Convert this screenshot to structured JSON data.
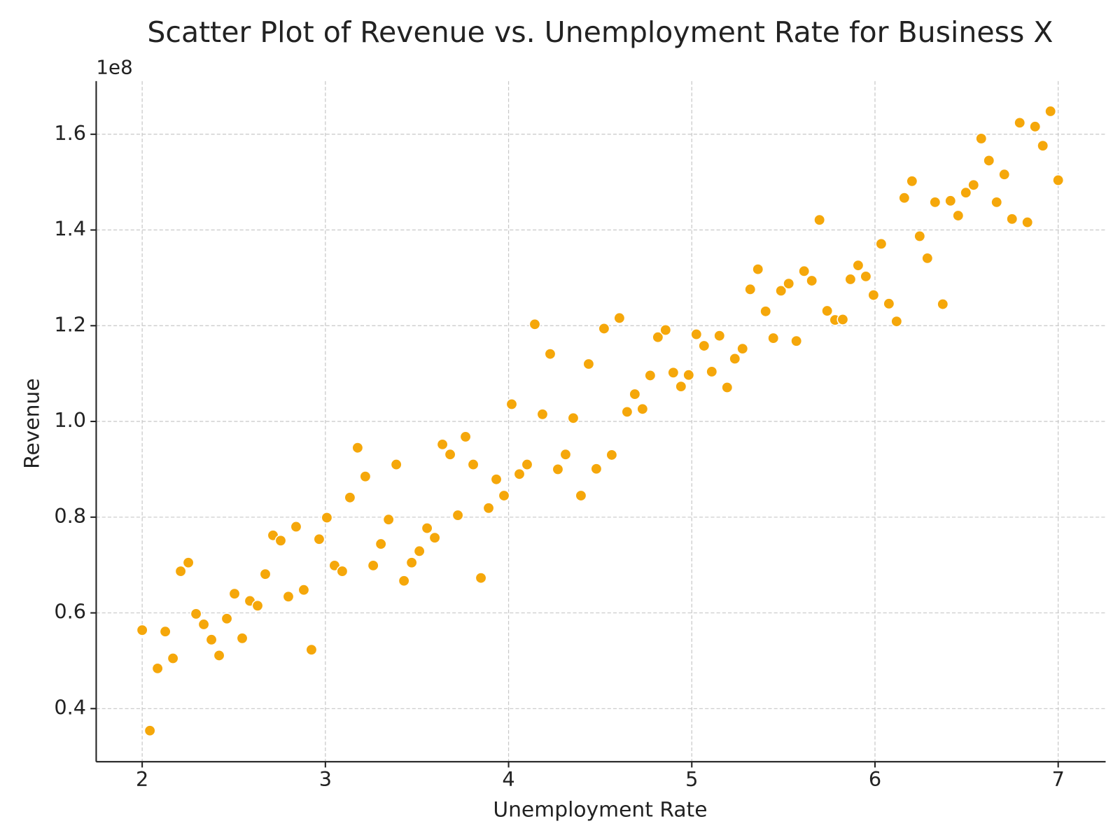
{
  "chart_data": {
    "type": "scatter",
    "title": "Scatter Plot of Revenue vs. Unemployment Rate for Business X",
    "x_label": "Unemployment Rate",
    "y_label": "Revenue",
    "y_offset_label": "1e8",
    "color": "#f5a70a",
    "grid": true,
    "xlim": [
      1.749,
      7.259
    ],
    "ylim": [
      0.289,
      1.711
    ],
    "xticks": [
      2,
      3,
      4,
      5,
      6,
      7
    ],
    "yticks": [
      0.4,
      0.6,
      0.8,
      {
        "value": 1,
        "label": "1.0"
      },
      1.2,
      1.4,
      1.6
    ],
    "x": [
      2.0,
      2.042,
      2.084,
      2.126,
      2.168,
      2.21,
      2.252,
      2.294,
      2.336,
      2.378,
      2.42,
      2.462,
      2.504,
      2.546,
      2.588,
      2.63,
      2.672,
      2.714,
      2.756,
      2.798,
      2.84,
      2.882,
      2.924,
      2.966,
      3.008,
      3.05,
      3.092,
      3.134,
      3.176,
      3.218,
      3.261,
      3.303,
      3.345,
      3.387,
      3.429,
      3.471,
      3.513,
      3.555,
      3.597,
      3.639,
      3.681,
      3.723,
      3.765,
      3.807,
      3.849,
      3.891,
      3.933,
      3.975,
      4.017,
      4.059,
      4.101,
      4.143,
      4.185,
      4.227,
      4.269,
      4.311,
      4.353,
      4.395,
      4.437,
      4.479,
      4.521,
      4.563,
      4.605,
      4.647,
      4.689,
      4.731,
      4.773,
      4.815,
      4.857,
      4.899,
      4.941,
      4.983,
      5.025,
      5.067,
      5.109,
      5.151,
      5.193,
      5.235,
      5.277,
      5.319,
      5.361,
      5.403,
      5.445,
      5.487,
      5.529,
      5.571,
      5.613,
      5.655,
      5.697,
      5.739,
      5.782,
      5.824,
      5.866,
      5.908,
      5.95,
      5.992,
      6.034,
      6.076,
      6.118,
      6.16,
      6.202,
      6.244,
      6.286,
      6.328,
      6.37,
      6.412,
      6.454,
      6.496,
      6.538,
      6.58,
      6.622,
      6.664,
      6.706,
      6.748,
      6.79,
      6.832,
      6.874,
      6.916,
      6.958,
      7.0
    ],
    "values": [
      0.564,
      0.354,
      0.484,
      0.561,
      0.505,
      0.687,
      0.705,
      0.598,
      0.576,
      0.544,
      0.511,
      0.588,
      0.64,
      0.547,
      0.625,
      0.615,
      0.681,
      0.762,
      0.751,
      0.634,
      0.78,
      0.648,
      0.523,
      0.754,
      0.799,
      0.699,
      0.687,
      0.841,
      0.945,
      0.885,
      0.699,
      0.744,
      0.795,
      0.91,
      0.667,
      0.705,
      0.729,
      0.777,
      0.757,
      0.952,
      0.931,
      0.804,
      0.968,
      0.91,
      0.673,
      0.819,
      0.879,
      0.845,
      1.036,
      0.89,
      0.91,
      1.203,
      1.015,
      1.141,
      0.9,
      0.931,
      1.007,
      0.845,
      1.12,
      0.901,
      1.194,
      0.93,
      1.216,
      1.02,
      1.057,
      1.026,
      1.096,
      1.176,
      1.191,
      1.102,
      1.073,
      1.097,
      1.182,
      1.158,
      1.104,
      1.179,
      1.071,
      1.131,
      1.152,
      1.276,
      1.318,
      1.23,
      1.174,
      1.273,
      1.288,
      1.168,
      1.314,
      1.294,
      1.421,
      1.231,
      1.212,
      1.213,
      1.297,
      1.326,
      1.303,
      1.264,
      1.371,
      1.246,
      1.209,
      1.467,
      1.502,
      1.387,
      1.341,
      1.458,
      1.245,
      1.461,
      1.43,
      1.478,
      1.494,
      1.591,
      1.545,
      1.458,
      1.516,
      1.423,
      1.624,
      1.416,
      1.616,
      1.576,
      1.648,
      1.504
    ]
  }
}
